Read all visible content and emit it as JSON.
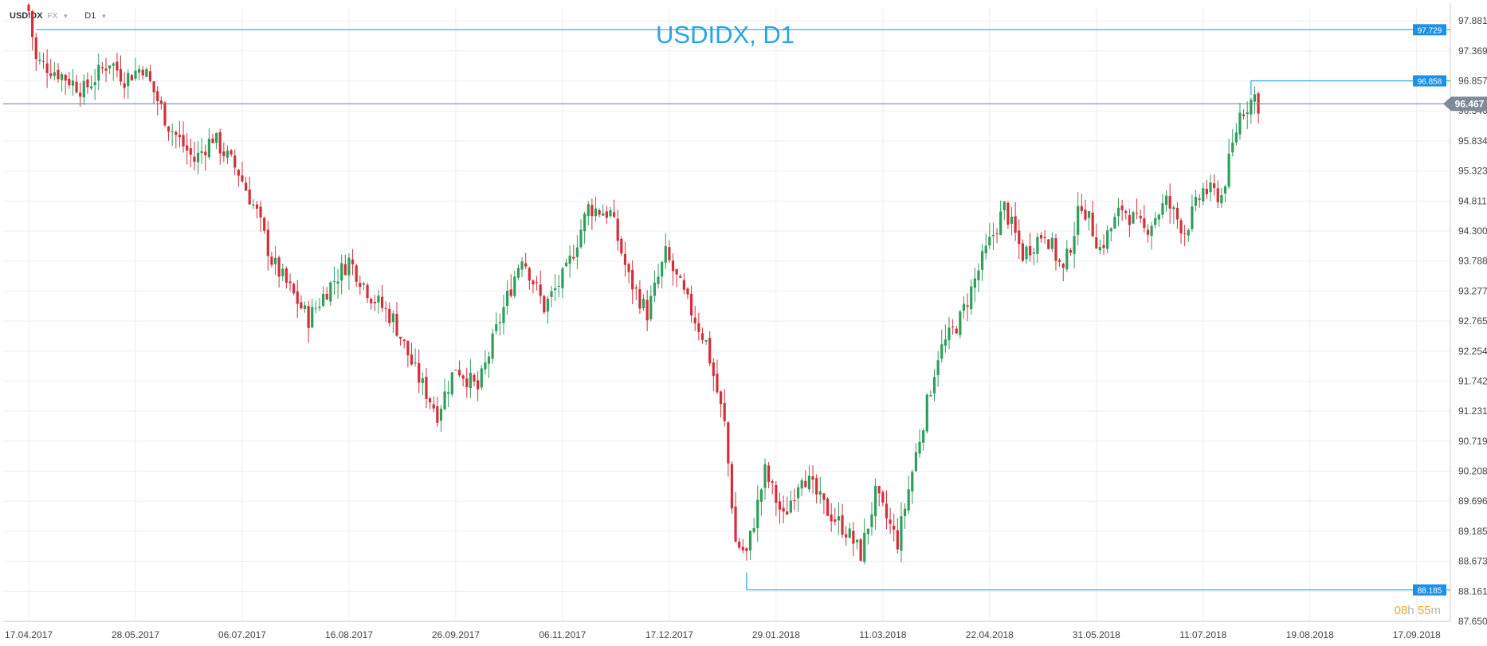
{
  "toolbar": {
    "symbol": "USDIDX",
    "type": "FX",
    "timeframe": "D1"
  },
  "chart_title": "USDIDX, D1",
  "timer": {
    "h": "08",
    "h_unit": "h",
    "m": "55",
    "m_unit": "m"
  },
  "colors": {
    "up": "#2e9e5b",
    "down": "#d32f3a",
    "accent": "#2aa4e2",
    "price_line": "#7e8a97",
    "grid": "#eeeeee"
  },
  "chart_data": {
    "type": "candlestick",
    "title": "USDIDX, D1",
    "ylim": [
      87.65,
      98.1
    ],
    "y_ticks": [
      "97.881",
      "97.369",
      "96.857",
      "96.346",
      "95.834",
      "95.323",
      "94.811",
      "94.300",
      "93.788",
      "93.277",
      "92.765",
      "92.254",
      "91.742",
      "91.231",
      "90.719",
      "90.208",
      "89.696",
      "89.185",
      "88.673",
      "88.161",
      "87.650"
    ],
    "x_ticks": [
      "17.04.2017",
      "28.05.2017",
      "06.07.2017",
      "16.08.2017",
      "26.09.2017",
      "06.11.2017",
      "17.12.2017",
      "29.01.2018",
      "11.03.2018",
      "22.04.2018",
      "31.05.2018",
      "11.07.2018",
      "19.08.2018",
      "17.09.2018"
    ],
    "current_price": {
      "value": 96.467,
      "label": "96.467"
    },
    "levels": [
      {
        "value": 97.729,
        "label": "97.729",
        "from_bar": 2
      },
      {
        "value": 96.858,
        "label": "96.858",
        "from_bar": 332
      },
      {
        "value": 88.185,
        "label": "88.185",
        "from_bar": 195
      }
    ],
    "bars_per_tick": 29,
    "close_path": [
      [
        0,
        98.05
      ],
      [
        2,
        97.2
      ],
      [
        8,
        97.0
      ],
      [
        15,
        96.7
      ],
      [
        22,
        97.2
      ],
      [
        26,
        96.9
      ],
      [
        31,
        97.1
      ],
      [
        38,
        96.1
      ],
      [
        45,
        95.5
      ],
      [
        50,
        95.9
      ],
      [
        57,
        95.3
      ],
      [
        62,
        94.6
      ],
      [
        66,
        93.8
      ],
      [
        71,
        93.3
      ],
      [
        76,
        92.8
      ],
      [
        81,
        93.3
      ],
      [
        87,
        93.8
      ],
      [
        93,
        93.2
      ],
      [
        99,
        92.8
      ],
      [
        105,
        91.9
      ],
      [
        111,
        91.2
      ],
      [
        116,
        92.0
      ],
      [
        122,
        91.6
      ],
      [
        128,
        92.8
      ],
      [
        134,
        93.9
      ],
      [
        140,
        93.0
      ],
      [
        146,
        93.6
      ],
      [
        152,
        94.7
      ],
      [
        158,
        94.6
      ],
      [
        163,
        93.5
      ],
      [
        168,
        92.9
      ],
      [
        173,
        93.9
      ],
      [
        178,
        93.2
      ],
      [
        184,
        92.4
      ],
      [
        189,
        91.0
      ],
      [
        192,
        89.0
      ],
      [
        195,
        88.8
      ],
      [
        200,
        90.2
      ],
      [
        205,
        89.4
      ],
      [
        210,
        90.2
      ],
      [
        216,
        89.6
      ],
      [
        222,
        89.2
      ],
      [
        226,
        88.8
      ],
      [
        230,
        89.8
      ],
      [
        236,
        89.0
      ],
      [
        241,
        90.5
      ],
      [
        247,
        92.2
      ],
      [
        253,
        92.8
      ],
      [
        259,
        93.8
      ],
      [
        265,
        94.7
      ],
      [
        270,
        93.9
      ],
      [
        276,
        94.3
      ],
      [
        281,
        93.6
      ],
      [
        286,
        94.8
      ],
      [
        291,
        94.0
      ],
      [
        297,
        94.7
      ],
      [
        303,
        94.3
      ],
      [
        309,
        94.8
      ],
      [
        314,
        94.3
      ],
      [
        319,
        95.0
      ],
      [
        324,
        94.9
      ],
      [
        329,
        96.3
      ],
      [
        333,
        96.6
      ],
      [
        334,
        96.45
      ]
    ]
  }
}
